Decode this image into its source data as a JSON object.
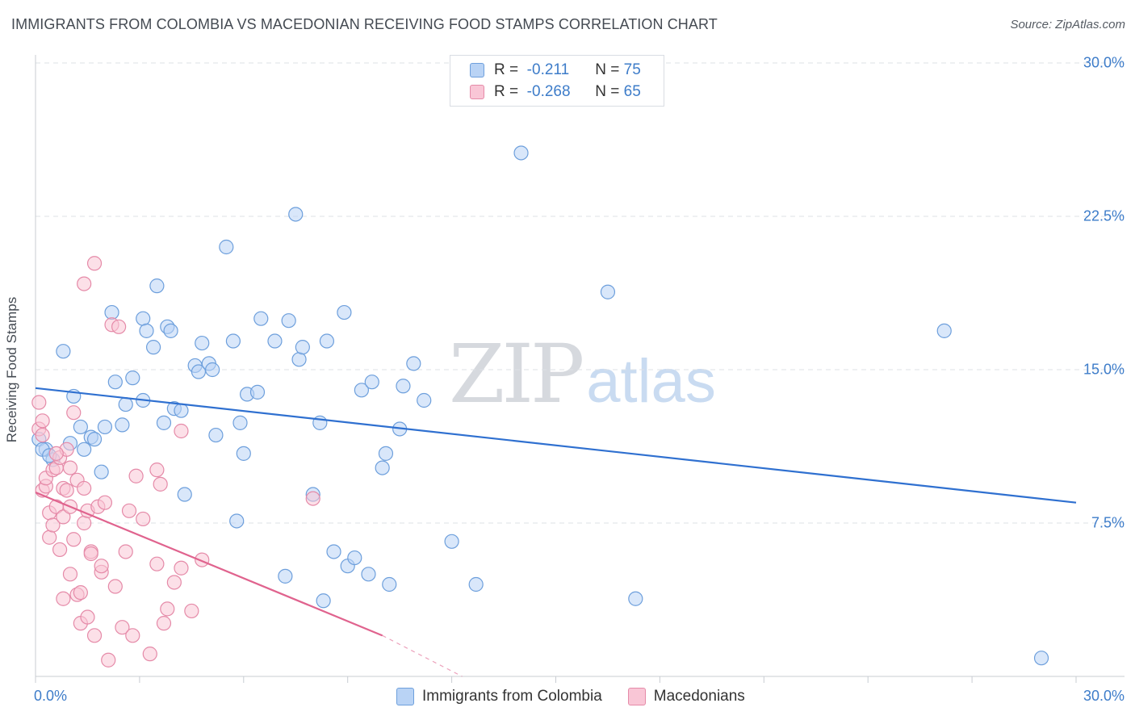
{
  "title": "IMMIGRANTS FROM COLOMBIA VS MACEDONIAN RECEIVING FOOD STAMPS CORRELATION CHART",
  "source": "Source: ZipAtlas.com",
  "watermark": {
    "zip": "ZIP",
    "atlas": "atlas"
  },
  "legend": {
    "r_label": "R =",
    "n_label": "N =",
    "rows": [
      {
        "r": "-0.211",
        "n": "75"
      },
      {
        "r": "-0.268",
        "n": "65"
      }
    ]
  },
  "bottom_legend": [
    "Immigrants from Colombia",
    "Macedonians"
  ],
  "colors": {
    "blue": "#6d9fdc",
    "blue_fill": "#b9d3f5",
    "blue_line": "#2f70d0",
    "pink": "#e58aa8",
    "pink_fill": "#f9c6d6",
    "pink_line": "#e0638e"
  },
  "chart_data": {
    "type": "scatter",
    "ylabel": "Receiving Food Stamps",
    "xlim": [
      0,
      30
    ],
    "ylim": [
      0,
      30
    ],
    "y_ticks": [
      {
        "value": 7.5,
        "label": "7.5%"
      },
      {
        "value": 15,
        "label": "15.0%"
      },
      {
        "value": 22.5,
        "label": "22.5%"
      },
      {
        "value": 30,
        "label": "30.0%"
      }
    ],
    "x_ticks": [
      {
        "value": 0,
        "label": "0.0%"
      },
      {
        "value": 30,
        "label": "30.0%"
      }
    ],
    "grid": true,
    "series": [
      {
        "name": "Immigrants from Colombia",
        "trend": {
          "x0": 0,
          "y0": 14.1,
          "x1": 30,
          "y1": 8.5
        },
        "points": [
          [
            0.1,
            11.6
          ],
          [
            0.3,
            11.1
          ],
          [
            0.5,
            10.6
          ],
          [
            0.8,
            15.9
          ],
          [
            1.0,
            11.4
          ],
          [
            1.1,
            13.7
          ],
          [
            1.3,
            12.2
          ],
          [
            1.4,
            11.1
          ],
          [
            1.6,
            11.7
          ],
          [
            1.7,
            11.6
          ],
          [
            1.9,
            10.0
          ],
          [
            2.0,
            12.2
          ],
          [
            2.2,
            17.8
          ],
          [
            2.3,
            14.4
          ],
          [
            2.5,
            12.3
          ],
          [
            2.6,
            13.3
          ],
          [
            2.8,
            14.6
          ],
          [
            3.1,
            13.5
          ],
          [
            3.1,
            17.5
          ],
          [
            3.2,
            16.9
          ],
          [
            3.4,
            16.1
          ],
          [
            3.5,
            19.1
          ],
          [
            3.7,
            12.4
          ],
          [
            3.8,
            17.1
          ],
          [
            3.9,
            16.9
          ],
          [
            4.0,
            13.1
          ],
          [
            4.2,
            13.0
          ],
          [
            4.3,
            8.9
          ],
          [
            4.6,
            15.2
          ],
          [
            4.7,
            14.9
          ],
          [
            4.8,
            16.3
          ],
          [
            5.0,
            15.3
          ],
          [
            5.1,
            15.0
          ],
          [
            5.2,
            11.8
          ],
          [
            5.5,
            21.0
          ],
          [
            5.7,
            16.4
          ],
          [
            5.8,
            7.6
          ],
          [
            5.9,
            12.4
          ],
          [
            6.0,
            10.9
          ],
          [
            6.1,
            13.8
          ],
          [
            6.4,
            13.9
          ],
          [
            6.5,
            17.5
          ],
          [
            6.9,
            16.4
          ],
          [
            7.2,
            4.9
          ],
          [
            7.3,
            17.4
          ],
          [
            7.5,
            22.6
          ],
          [
            7.6,
            15.5
          ],
          [
            7.7,
            16.1
          ],
          [
            8.0,
            8.9
          ],
          [
            8.2,
            12.4
          ],
          [
            8.3,
            3.7
          ],
          [
            8.4,
            16.4
          ],
          [
            8.6,
            6.1
          ],
          [
            8.9,
            17.8
          ],
          [
            9.0,
            5.4
          ],
          [
            9.2,
            5.8
          ],
          [
            9.4,
            14.0
          ],
          [
            9.6,
            5.0
          ],
          [
            9.7,
            14.4
          ],
          [
            10.0,
            10.2
          ],
          [
            10.1,
            10.9
          ],
          [
            10.2,
            4.5
          ],
          [
            10.5,
            12.1
          ],
          [
            10.6,
            14.2
          ],
          [
            10.9,
            15.3
          ],
          [
            11.2,
            13.5
          ],
          [
            12.0,
            6.6
          ],
          [
            12.7,
            4.5
          ],
          [
            14.0,
            25.6
          ],
          [
            16.5,
            18.8
          ],
          [
            17.3,
            3.8
          ],
          [
            26.2,
            16.9
          ],
          [
            29.0,
            0.9
          ],
          [
            0.2,
            11.1
          ],
          [
            0.4,
            10.8
          ]
        ]
      },
      {
        "name": "Macedonians",
        "trend": {
          "x0": 0,
          "y0": 9.0,
          "x1": 10.0,
          "y1": 2.0,
          "dash_x1": 12.3,
          "dash_y1": 0.0
        },
        "points": [
          [
            0.1,
            13.4
          ],
          [
            0.1,
            12.1
          ],
          [
            0.2,
            11.8
          ],
          [
            0.2,
            9.1
          ],
          [
            0.3,
            9.3
          ],
          [
            0.3,
            9.7
          ],
          [
            0.4,
            8.0
          ],
          [
            0.4,
            6.8
          ],
          [
            0.5,
            10.1
          ],
          [
            0.5,
            7.4
          ],
          [
            0.6,
            8.3
          ],
          [
            0.6,
            10.2
          ],
          [
            0.7,
            6.2
          ],
          [
            0.7,
            10.7
          ],
          [
            0.8,
            9.2
          ],
          [
            0.8,
            7.8
          ],
          [
            0.9,
            11.1
          ],
          [
            0.9,
            9.1
          ],
          [
            1.0,
            5.0
          ],
          [
            1.0,
            10.2
          ],
          [
            1.1,
            12.9
          ],
          [
            1.1,
            6.7
          ],
          [
            1.2,
            4.0
          ],
          [
            1.2,
            9.6
          ],
          [
            1.3,
            4.1
          ],
          [
            1.3,
            2.6
          ],
          [
            1.4,
            7.5
          ],
          [
            1.4,
            9.2
          ],
          [
            1.4,
            19.2
          ],
          [
            1.5,
            8.1
          ],
          [
            1.5,
            2.9
          ],
          [
            1.6,
            6.1
          ],
          [
            1.6,
            6.0
          ],
          [
            1.7,
            2.0
          ],
          [
            1.7,
            20.2
          ],
          [
            1.8,
            8.3
          ],
          [
            1.9,
            5.1
          ],
          [
            1.9,
            5.4
          ],
          [
            2.0,
            8.5
          ],
          [
            2.1,
            0.8
          ],
          [
            2.2,
            17.2
          ],
          [
            2.3,
            4.4
          ],
          [
            2.5,
            2.4
          ],
          [
            2.6,
            6.1
          ],
          [
            2.7,
            8.1
          ],
          [
            2.8,
            2.0
          ],
          [
            2.9,
            9.8
          ],
          [
            3.1,
            7.7
          ],
          [
            3.3,
            1.1
          ],
          [
            3.5,
            10.1
          ],
          [
            3.5,
            5.5
          ],
          [
            3.6,
            9.4
          ],
          [
            3.7,
            2.6
          ],
          [
            3.8,
            3.3
          ],
          [
            4.0,
            4.6
          ],
          [
            4.2,
            5.3
          ],
          [
            4.2,
            12.0
          ],
          [
            4.5,
            3.2
          ],
          [
            4.8,
            5.7
          ],
          [
            8.0,
            8.7
          ],
          [
            0.6,
            10.9
          ],
          [
            1.0,
            8.3
          ],
          [
            0.2,
            12.5
          ],
          [
            0.8,
            3.8
          ],
          [
            2.4,
            17.1
          ]
        ]
      }
    ]
  }
}
